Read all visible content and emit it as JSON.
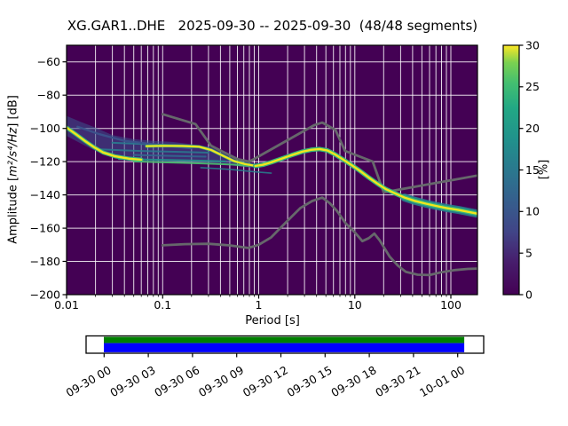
{
  "chart_data": {
    "type": "heatmap",
    "subtype": "ppsd-probability-histogram",
    "title": "XG.GAR1..DHE   2025-09-30 -- 2025-09-30  (48/48 segments)",
    "station": "XG.GAR1..DHE",
    "date_range": "2025-09-30 -- 2025-09-30",
    "segments": "48/48 segments",
    "xlabel": "Period [s]",
    "ylabel": "Amplitude [m²/s⁴/Hz] [dB]",
    "ylabel_parts": {
      "prefix": "Amplitude [",
      "math": "m²/s⁴/Hz",
      "suffix": "] [dB]"
    },
    "x_axis": {
      "scale": "log",
      "min": 0.01,
      "max": 190,
      "tick_values": [
        0.01,
        0.1,
        1,
        10,
        100
      ],
      "tick_labels": [
        "0.01",
        "0.1",
        "1",
        "10",
        "100"
      ]
    },
    "y_axis": {
      "min": -200,
      "max": -50,
      "tick_values": [
        -60,
        -80,
        -100,
        -120,
        -140,
        -160,
        -180,
        -200
      ],
      "tick_labels": [
        "−60",
        "−80",
        "−100",
        "−120",
        "−140",
        "−160",
        "−180",
        "−200"
      ]
    },
    "grid": {
      "color": "rgba(255,255,255,0.85)",
      "horizontal_db": [
        -60,
        -80,
        -100,
        -120,
        -140,
        -160,
        -180
      ]
    },
    "colorbar": {
      "label": "[%]",
      "min": 0,
      "max": 30,
      "tick_values": [
        0,
        5,
        10,
        15,
        20,
        25,
        30
      ],
      "tick_labels": [
        "0",
        "5",
        "10",
        "15",
        "20",
        "25",
        "30"
      ],
      "colormap": "viridis",
      "gradient": [
        [
          0.0,
          "#440154"
        ],
        [
          0.13,
          "#471d6c"
        ],
        [
          0.25,
          "#414487"
        ],
        [
          0.38,
          "#355f8d"
        ],
        [
          0.5,
          "#2a788e"
        ],
        [
          0.62,
          "#21918c"
        ],
        [
          0.75,
          "#22a884"
        ],
        [
          0.85,
          "#44bf70"
        ],
        [
          0.93,
          "#7ad151"
        ],
        [
          1.0,
          "#fde725"
        ]
      ]
    },
    "histogram": {
      "background": "#440154",
      "ridge_color": "#f2e51e",
      "fringe_color": "#35b779",
      "tail_band_color": "#26828e",
      "ridge_start": [
        [
          0.01,
          -99.5
        ],
        [
          0.0125,
          -103.5
        ],
        [
          0.0155,
          -107.5
        ],
        [
          0.019,
          -111
        ],
        [
          0.024,
          -114.5
        ],
        [
          0.032,
          -116.8
        ],
        [
          0.045,
          -118.2
        ],
        [
          0.06,
          -118.8
        ]
      ],
      "ridge_flat": [
        [
          0.068,
          -110.7
        ],
        [
          0.1,
          -110.5
        ],
        [
          0.16,
          -110.6
        ],
        [
          0.24,
          -111
        ],
        [
          0.32,
          -113
        ],
        [
          0.42,
          -116.3
        ],
        [
          0.55,
          -119.6
        ],
        [
          0.72,
          -121.5
        ],
        [
          0.92,
          -122.5
        ]
      ],
      "bottom_edge": [
        [
          0.05,
          -119.9
        ],
        [
          0.1,
          -120.4
        ],
        [
          0.2,
          -120.9
        ],
        [
          0.35,
          -121.3
        ],
        [
          0.55,
          -121.8
        ],
        [
          0.78,
          -122.6
        ]
      ],
      "ridge_main": [
        [
          0.92,
          -122.6
        ],
        [
          1.1,
          -121.9
        ],
        [
          1.35,
          -120.4
        ],
        [
          1.7,
          -118.4
        ],
        [
          2.2,
          -116.1
        ],
        [
          2.8,
          -114.1
        ],
        [
          3.5,
          -112.9
        ],
        [
          4.3,
          -112.4
        ],
        [
          5.2,
          -113.3
        ],
        [
          6.2,
          -115.6
        ],
        [
          7.5,
          -118.6
        ],
        [
          9.0,
          -121.6
        ],
        [
          11,
          -125.0
        ],
        [
          14,
          -129.6
        ],
        [
          17,
          -133.0
        ],
        [
          21,
          -136.5
        ],
        [
          26,
          -139.0
        ],
        [
          33,
          -141.6
        ],
        [
          42,
          -143.6
        ],
        [
          55,
          -145.3
        ],
        [
          70,
          -146.6
        ],
        [
          90,
          -147.9
        ],
        [
          120,
          -149.1
        ],
        [
          155,
          -150.3
        ],
        [
          190,
          -151.3
        ]
      ],
      "spread_upper": [
        [
          0.01,
          -92.5
        ],
        [
          0.014,
          -96
        ],
        [
          0.02,
          -99.5
        ],
        [
          0.03,
          -104
        ],
        [
          0.05,
          -106.5
        ],
        [
          0.08,
          -107.5
        ],
        [
          0.13,
          -108.2
        ],
        [
          0.2,
          -109.5
        ],
        [
          0.3,
          -111
        ],
        [
          0.45,
          -114
        ],
        [
          0.6,
          -117.5
        ],
        [
          0.8,
          -120.5
        ],
        [
          1.0,
          -121.5
        ]
      ],
      "spread_lower": [
        [
          0.01,
          -104.5
        ],
        [
          0.014,
          -109
        ],
        [
          0.02,
          -113.5
        ],
        [
          0.03,
          -117.5
        ],
        [
          0.05,
          -119.8
        ],
        [
          0.08,
          -120.6
        ],
        [
          0.15,
          -121
        ],
        [
          0.3,
          -121.6
        ],
        [
          0.5,
          -122.2
        ],
        [
          0.75,
          -123.4
        ],
        [
          1.0,
          -124.2
        ]
      ],
      "spread_fill": "#3a548d",
      "streaks": [
        {
          "color": "#2a788e",
          "width": 2,
          "opacity": 0.95,
          "points": [
            [
              0.03,
              -108.6
            ],
            [
              0.08,
              -109.6
            ],
            [
              0.2,
              -110.6
            ]
          ]
        },
        {
          "color": "#2a788e",
          "width": 2,
          "opacity": 0.9,
          "points": [
            [
              0.022,
              -112.6
            ],
            [
              0.06,
              -113.6
            ],
            [
              0.15,
              -114.1
            ],
            [
              0.3,
              -114.6
            ]
          ]
        },
        {
          "color": "#21918c",
          "width": 2,
          "opacity": 0.9,
          "points": [
            [
              0.035,
              -118.4
            ],
            [
              0.1,
              -118.9
            ],
            [
              0.25,
              -119.4
            ],
            [
              0.45,
              -119.9
            ]
          ]
        },
        {
          "color": "#3b528b",
          "width": 2.4,
          "opacity": 0.95,
          "points": [
            [
              0.013,
              -99
            ],
            [
              0.022,
              -103.5
            ],
            [
              0.04,
              -107.5
            ],
            [
              0.1,
              -110.2
            ],
            [
              0.2,
              -112
            ]
          ]
        },
        {
          "color": "#26828e",
          "width": 1.6,
          "opacity": 0.85,
          "points": [
            [
              0.25,
              -123.6
            ],
            [
              0.5,
              -124.6
            ],
            [
              0.9,
              -126.1
            ],
            [
              1.35,
              -126.9
            ]
          ]
        },
        {
          "color": "#31688e",
          "width": 2,
          "opacity": 0.9,
          "points": [
            [
              0.05,
              -116
            ],
            [
              0.12,
              -116.5
            ],
            [
              0.28,
              -117
            ]
          ]
        }
      ]
    },
    "noise_models": {
      "color": "#66686b",
      "width": 2.8,
      "nhnm": [
        [
          0.1,
          -91.5
        ],
        [
          0.22,
          -97.4
        ],
        [
          0.32,
          -110.5
        ],
        [
          0.6,
          -118.5
        ],
        [
          0.8,
          -120.0
        ],
        [
          3.8,
          -98.0
        ],
        [
          4.6,
          -96.5
        ],
        [
          6.3,
          -101.0
        ],
        [
          7.9,
          -113.5
        ],
        [
          15.4,
          -120.0
        ],
        [
          20.0,
          -138.5
        ],
        [
          190,
          -128.3
        ]
      ],
      "nlnm": [
        [
          0.1,
          -170.3
        ],
        [
          0.17,
          -169.6
        ],
        [
          0.3,
          -169.4
        ],
        [
          0.5,
          -170.4
        ],
        [
          0.78,
          -171.9
        ],
        [
          1.0,
          -170.0
        ],
        [
          1.35,
          -165.5
        ],
        [
          2.0,
          -155.5
        ],
        [
          2.7,
          -148.0
        ],
        [
          3.6,
          -143.7
        ],
        [
          4.6,
          -141.6
        ],
        [
          5.5,
          -145.0
        ],
        [
          6.5,
          -149.5
        ],
        [
          8.0,
          -157.0
        ],
        [
          10.0,
          -162.5
        ],
        [
          12.0,
          -167.8
        ],
        [
          14.0,
          -166.0
        ],
        [
          16.0,
          -163.3
        ],
        [
          18.0,
          -167.0
        ],
        [
          23.0,
          -177.0
        ],
        [
          28.0,
          -182.5
        ],
        [
          34.0,
          -186.3
        ],
        [
          45.0,
          -188.0
        ],
        [
          60.0,
          -188.2
        ],
        [
          80.0,
          -186.5
        ],
        [
          110,
          -185.2
        ],
        [
          150,
          -184.5
        ],
        [
          190,
          -184.3
        ]
      ]
    },
    "timeline": {
      "tick_labels": [
        "09-30 00",
        "09-30 03",
        "09-30 06",
        "09-30 09",
        "09-30 12",
        "09-30 15",
        "09-30 18",
        "09-30 21",
        "10-01 00"
      ],
      "top_color": "#008000",
      "bottom_color": "#0000ff",
      "border_color": "#000000",
      "coverage_frac": [
        0.0446,
        0.951
      ]
    }
  }
}
